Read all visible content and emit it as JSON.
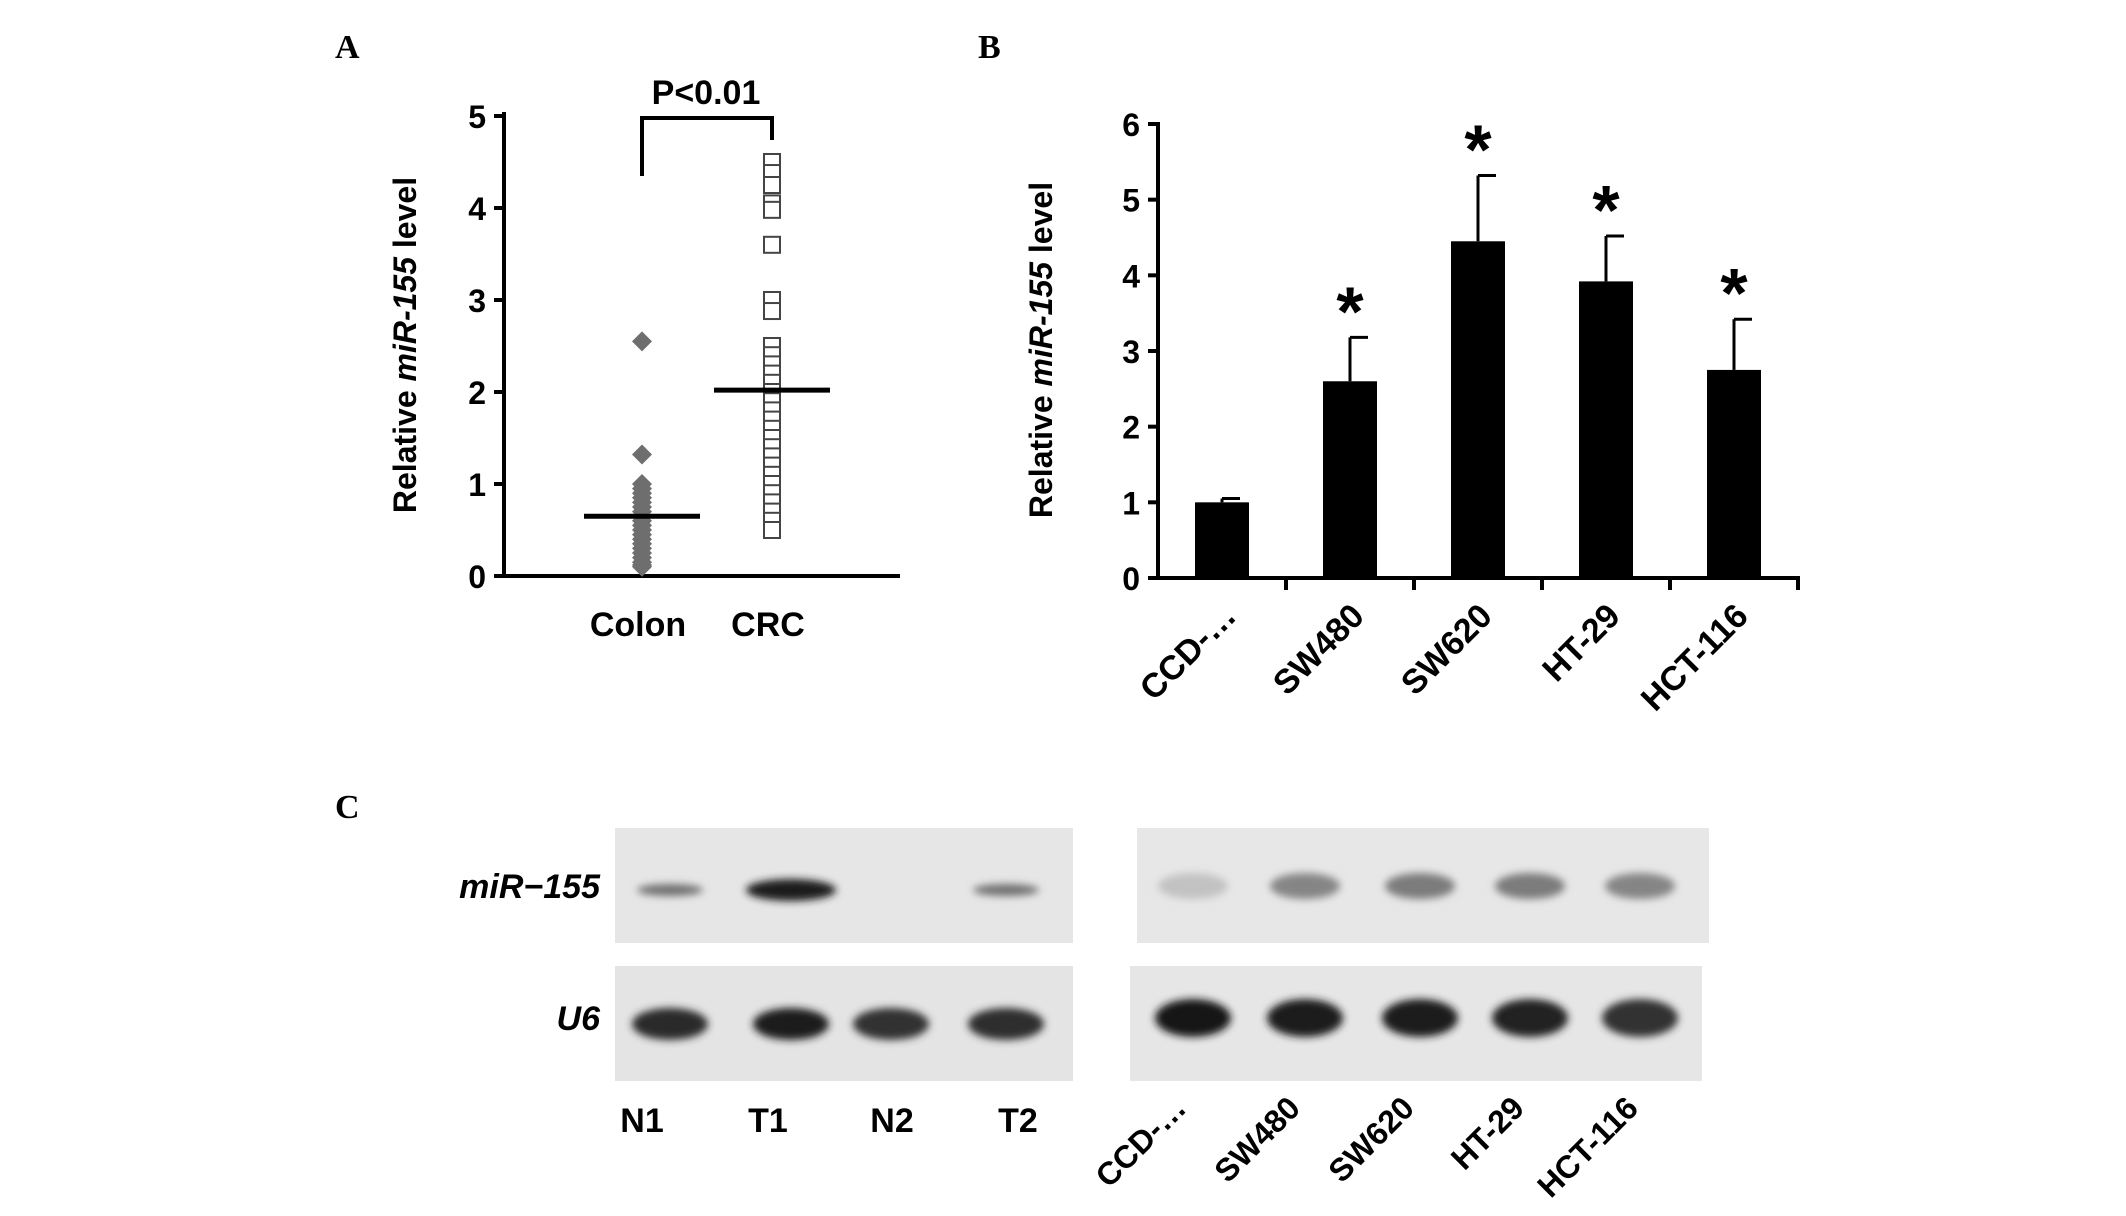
{
  "panel_labels": {
    "a": "A",
    "b": "B",
    "c": "C"
  },
  "chart_data": [
    {
      "panel": "A",
      "type": "scatter",
      "ylabel_prefix": "Relative ",
      "ylabel_italic": "miR-155",
      "ylabel_suffix": " level",
      "ylim": [
        0,
        5
      ],
      "yticks": [
        0,
        1,
        2,
        3,
        4,
        5
      ],
      "categories": [
        "Colon",
        "CRC"
      ],
      "significance": "P<0.01",
      "series": [
        {
          "category": "Colon",
          "marker": "filled-diamond",
          "color": "#6e6e6e",
          "values": [
            2.55,
            1.32,
            1.0,
            0.95,
            0.9,
            0.85,
            0.8,
            0.75,
            0.7,
            0.65,
            0.6,
            0.55,
            0.5,
            0.45,
            0.4,
            0.35,
            0.3,
            0.25,
            0.2,
            0.15,
            0.12,
            0.1
          ],
          "mean": 0.65
        },
        {
          "category": "CRC",
          "marker": "open-square",
          "color": "#444444",
          "values": [
            4.5,
            4.38,
            4.25,
            4.05,
            3.98,
            3.6,
            3.0,
            2.88,
            2.5,
            2.4,
            2.3,
            2.2,
            2.1,
            2.0,
            1.9,
            1.8,
            1.7,
            1.6,
            1.5,
            1.4,
            1.3,
            1.2,
            1.1,
            1.0,
            0.9,
            0.8,
            0.7,
            0.6,
            0.5
          ],
          "mean": 2.02
        }
      ]
    },
    {
      "panel": "B",
      "type": "bar",
      "ylabel_prefix": "Relative ",
      "ylabel_italic": "miR-155",
      "ylabel_suffix": " level",
      "ylim": [
        0,
        6
      ],
      "yticks": [
        0,
        1,
        2,
        3,
        4,
        5,
        6
      ],
      "categories": [
        "CCD-…",
        "SW480",
        "SW620",
        "HT-29",
        "HCT-116"
      ],
      "values": [
        1.0,
        2.6,
        4.45,
        3.92,
        2.75
      ],
      "errors": [
        0.05,
        0.58,
        0.87,
        0.6,
        0.67
      ],
      "significance": [
        "",
        "*",
        "*",
        "*",
        "*"
      ],
      "bar_color": "#000000"
    }
  ],
  "blot": {
    "row_labels": [
      "miR−155",
      "U6"
    ],
    "left_lanes": [
      "N1",
      "T1",
      "N2",
      "T2"
    ],
    "right_lanes": [
      "CCD-…",
      "SW480",
      "SW620",
      "HT-29",
      "HCT-116"
    ],
    "left_mir155_intensity": [
      0.55,
      0.95,
      0,
      0.55
    ],
    "left_u6_intensity": [
      0.9,
      0.95,
      0.85,
      0.88
    ],
    "right_mir155_intensity": [
      0.15,
      0.45,
      0.5,
      0.5,
      0.45
    ],
    "right_u6_intensity": [
      1.0,
      0.95,
      0.95,
      0.92,
      0.85
    ]
  }
}
